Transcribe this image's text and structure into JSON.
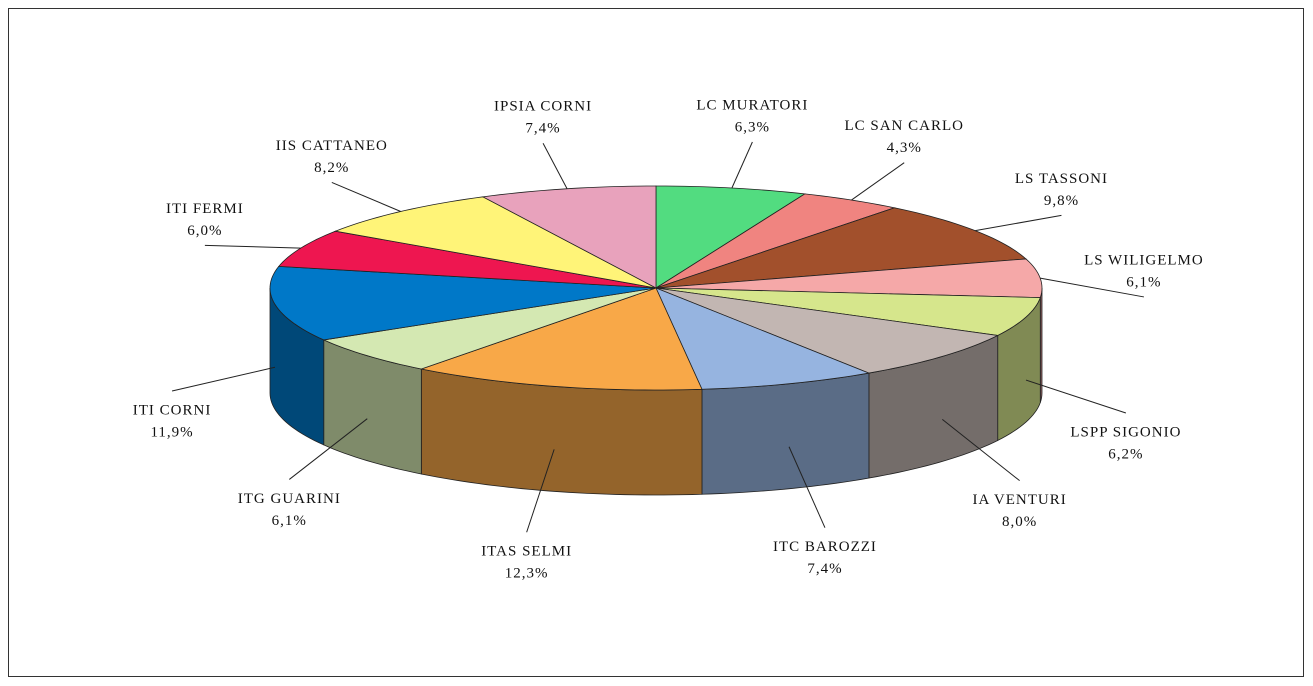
{
  "chart_data": {
    "type": "pie3d",
    "categories": [
      "LC MURATORI",
      "LC SAN CARLO",
      "LS TASSONI",
      "LS WILIGELMO",
      "LSPP SIGONIO",
      "IA VENTURI",
      "ITC BAROZZI",
      "ITAS SELMI",
      "ITG GUARINI",
      "ITI CORNI",
      "ITI FERMI",
      "IIS CATTANEO",
      "IPSIA CORNI"
    ],
    "values": [
      6.3,
      4.3,
      9.8,
      6.1,
      6.2,
      8.0,
      7.4,
      12.3,
      6.1,
      11.9,
      6.0,
      8.2,
      7.4
    ],
    "value_labels": [
      "6,3%",
      "4,3%",
      "9,8%",
      "6,1%",
      "6,2%",
      "8,0%",
      "7,4%",
      "12,3%",
      "6,1%",
      "11,9%",
      "6,0%",
      "8,2%",
      "7,4%"
    ],
    "colors": [
      "#52dc80",
      "#f08480",
      "#a2502c",
      "#f5a8a8",
      "#d6e68c",
      "#c2b6b2",
      "#96b4e0",
      "#f8a848",
      "#d4e8b2",
      "#0078c8",
      "#ee1650",
      "#fff478",
      "#e8a2bc"
    ]
  }
}
